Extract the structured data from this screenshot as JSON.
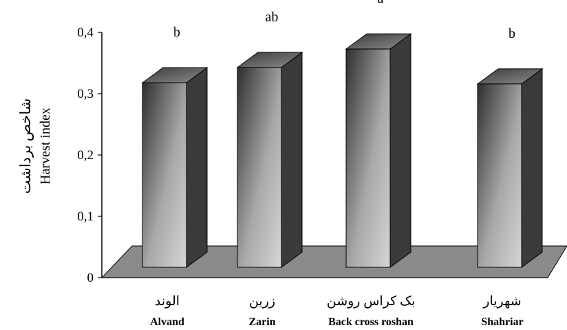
{
  "chart_data": {
    "type": "bar",
    "style": "3d",
    "categories_fa": [
      "الوند",
      "زرین",
      "بک کراس روشن",
      "شهریار"
    ],
    "categories_en": [
      "Alvand",
      "Zarin",
      "Back cross roshan",
      "Shahriar"
    ],
    "values": [
      0.31,
      0.335,
      0.365,
      0.308
    ],
    "significance_letters": [
      "b",
      "ab",
      "a",
      "b"
    ],
    "ylabel_fa": "شاخص برداشت",
    "ylabel_en": "Harvest index",
    "ylim": [
      0,
      0.4
    ],
    "yticks": [
      0,
      0.1,
      0.2,
      0.3,
      0.4
    ],
    "ytick_labels": [
      "0",
      "0,1",
      "0,2",
      "0,3",
      "0,4"
    ],
    "grid": false,
    "legend": "none",
    "colors": {
      "floor": "#8a8a8a",
      "bar_face_light": "#d2d2d2",
      "bar_face_dark": "#2e2e2e",
      "bar_side": "#3a3a3a",
      "bar_top": "#5a5a5a",
      "axis": "#000000"
    }
  }
}
